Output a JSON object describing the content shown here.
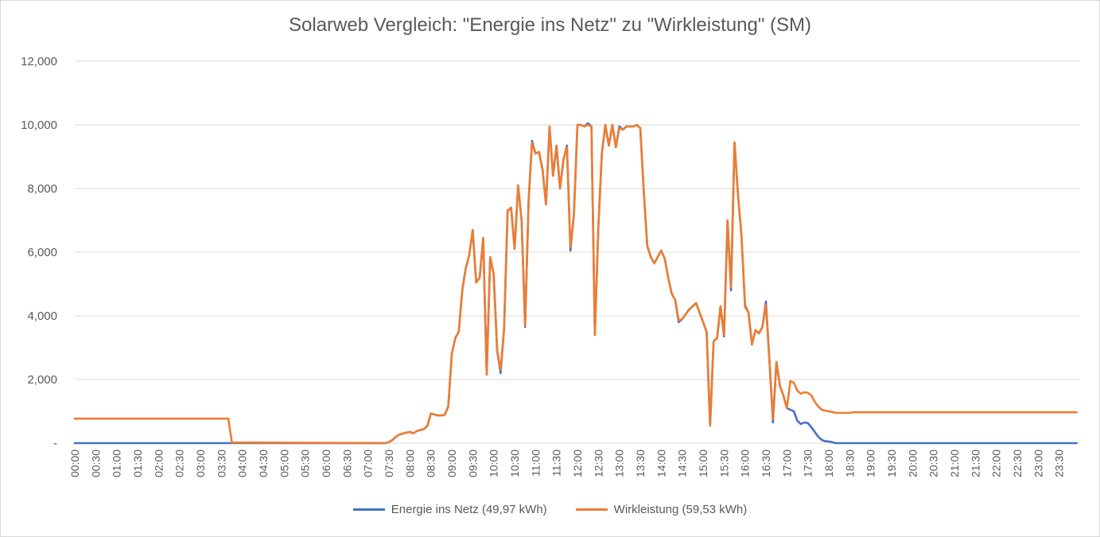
{
  "chart_data": {
    "type": "line",
    "title": "Solarweb Vergleich: \"Energie ins Netz\" zu \"Wirkleistung\" (SM)",
    "xlabel": "",
    "ylabel": "",
    "ylim": [
      0,
      12000
    ],
    "y_ticks": [
      {
        "value": 0,
        "label": "-"
      },
      {
        "value": 2000,
        "label": "2,000"
      },
      {
        "value": 4000,
        "label": "4,000"
      },
      {
        "value": 6000,
        "label": "6,000"
      },
      {
        "value": 8000,
        "label": "8,000"
      },
      {
        "value": 10000,
        "label": "10,000"
      },
      {
        "value": 12000,
        "label": "12,000"
      }
    ],
    "x_tick_labels": [
      "00:00",
      "00:30",
      "01:00",
      "01:30",
      "02:00",
      "02:30",
      "03:00",
      "03:30",
      "04:00",
      "04:30",
      "05:00",
      "05:30",
      "06:00",
      "06:30",
      "07:00",
      "07:30",
      "08:00",
      "08:30",
      "09:00",
      "09:30",
      "10:00",
      "10:30",
      "11:00",
      "11:30",
      "12:00",
      "12:30",
      "13:00",
      "13:30",
      "14:00",
      "14:30",
      "15:00",
      "15:30",
      "16:00",
      "16:30",
      "17:00",
      "17:30",
      "18:00",
      "18:30",
      "19:00",
      "19:30",
      "20:00",
      "20:30",
      "21:00",
      "21:30",
      "22:00",
      "22:30",
      "23:00",
      "23:30"
    ],
    "grid": true,
    "legend_position": "bottom",
    "series": [
      {
        "name": "Energie ins Netz (49,97 kWh)",
        "color": "#4472c4",
        "points": [
          [
            "00:00",
            0
          ],
          [
            "03:40",
            0
          ],
          [
            "07:25",
            0
          ],
          [
            "07:30",
            30
          ],
          [
            "07:35",
            100
          ],
          [
            "07:40",
            200
          ],
          [
            "07:45",
            270
          ],
          [
            "07:50",
            300
          ],
          [
            "07:55",
            330
          ],
          [
            "08:00",
            350
          ],
          [
            "08:05",
            310
          ],
          [
            "08:10",
            380
          ],
          [
            "08:15",
            410
          ],
          [
            "08:20",
            440
          ],
          [
            "08:25",
            540
          ],
          [
            "08:30",
            930
          ],
          [
            "08:35",
            900
          ],
          [
            "08:40",
            870
          ],
          [
            "08:45",
            870
          ],
          [
            "08:50",
            890
          ],
          [
            "08:55",
            1150
          ],
          [
            "09:00",
            2800
          ],
          [
            "09:05",
            3300
          ],
          [
            "09:10",
            3500
          ],
          [
            "09:15",
            4800
          ],
          [
            "09:20",
            5500
          ],
          [
            "09:25",
            5900
          ],
          [
            "09:30",
            6700
          ],
          [
            "09:35",
            5050
          ],
          [
            "09:40",
            5200
          ],
          [
            "09:45",
            6450
          ],
          [
            "09:50",
            2150
          ],
          [
            "09:55",
            5850
          ],
          [
            "10:00",
            5300
          ],
          [
            "10:05",
            2900
          ],
          [
            "10:10",
            2200
          ],
          [
            "10:15",
            3600
          ],
          [
            "10:20",
            7300
          ],
          [
            "10:25",
            7400
          ],
          [
            "10:30",
            6100
          ],
          [
            "10:35",
            8100
          ],
          [
            "10:40",
            7000
          ],
          [
            "10:45",
            3650
          ],
          [
            "10:50",
            7600
          ],
          [
            "10:55",
            9500
          ],
          [
            "11:00",
            9100
          ],
          [
            "11:05",
            9150
          ],
          [
            "11:10",
            8600
          ],
          [
            "11:15",
            7500
          ],
          [
            "11:20",
            9950
          ],
          [
            "11:25",
            8400
          ],
          [
            "11:30",
            9350
          ],
          [
            "11:35",
            8000
          ],
          [
            "11:40",
            8900
          ],
          [
            "11:45",
            9350
          ],
          [
            "11:50",
            6050
          ],
          [
            "11:55",
            7200
          ],
          [
            "12:00",
            10000
          ],
          [
            "12:05",
            10000
          ],
          [
            "12:10",
            9950
          ],
          [
            "12:15",
            10050
          ],
          [
            "12:20",
            9950
          ],
          [
            "12:25",
            3400
          ],
          [
            "12:30",
            6800
          ],
          [
            "12:35",
            9100
          ],
          [
            "12:40",
            10000
          ],
          [
            "12:45",
            9350
          ],
          [
            "12:50",
            10000
          ],
          [
            "12:55",
            9300
          ],
          [
            "13:00",
            9950
          ],
          [
            "13:05",
            9850
          ],
          [
            "13:10",
            9950
          ],
          [
            "13:15",
            9950
          ],
          [
            "13:20",
            9950
          ],
          [
            "13:25",
            10000
          ],
          [
            "13:30",
            9900
          ],
          [
            "13:35",
            7900
          ],
          [
            "13:40",
            6200
          ],
          [
            "13:45",
            5850
          ],
          [
            "13:50",
            5650
          ],
          [
            "13:55",
            5850
          ],
          [
            "14:00",
            6050
          ],
          [
            "14:05",
            5800
          ],
          [
            "14:10",
            5200
          ],
          [
            "14:15",
            4700
          ],
          [
            "14:20",
            4500
          ],
          [
            "14:25",
            3800
          ],
          [
            "14:30",
            3900
          ],
          [
            "14:35",
            4050
          ],
          [
            "14:40",
            4200
          ],
          [
            "14:45",
            4300
          ],
          [
            "14:50",
            4400
          ],
          [
            "14:55",
            4100
          ],
          [
            "15:00",
            3800
          ],
          [
            "15:05",
            3500
          ],
          [
            "15:10",
            550
          ],
          [
            "15:15",
            3200
          ],
          [
            "15:20",
            3300
          ],
          [
            "15:25",
            4300
          ],
          [
            "15:30",
            3350
          ],
          [
            "15:35",
            7000
          ],
          [
            "15:40",
            4800
          ],
          [
            "15:45",
            9450
          ],
          [
            "15:50",
            7800
          ],
          [
            "15:55",
            6500
          ],
          [
            "16:00",
            4300
          ],
          [
            "16:05",
            4100
          ],
          [
            "16:10",
            3100
          ],
          [
            "16:15",
            3550
          ],
          [
            "16:20",
            3450
          ],
          [
            "16:25",
            3650
          ],
          [
            "16:30",
            4450
          ],
          [
            "16:35",
            2600
          ],
          [
            "16:40",
            650
          ],
          [
            "16:45",
            2550
          ],
          [
            "16:50",
            1800
          ],
          [
            "16:55",
            1500
          ],
          [
            "17:00",
            1100
          ],
          [
            "17:05",
            1050
          ],
          [
            "17:10",
            1000
          ],
          [
            "17:15",
            700
          ],
          [
            "17:20",
            600
          ],
          [
            "17:25",
            650
          ],
          [
            "17:30",
            630
          ],
          [
            "17:35",
            500
          ],
          [
            "17:40",
            350
          ],
          [
            "17:45",
            200
          ],
          [
            "17:50",
            100
          ],
          [
            "17:55",
            60
          ],
          [
            "18:00",
            50
          ],
          [
            "18:05",
            30
          ],
          [
            "18:10",
            0
          ],
          [
            "23:55",
            0
          ]
        ]
      },
      {
        "name": "Wirkleistung (59,53 kWh)",
        "color": "#ed7d31",
        "points": [
          [
            "00:00",
            770
          ],
          [
            "03:40",
            770
          ],
          [
            "03:45",
            20
          ],
          [
            "07:25",
            0
          ],
          [
            "07:30",
            30
          ],
          [
            "07:35",
            100
          ],
          [
            "07:40",
            200
          ],
          [
            "07:45",
            270
          ],
          [
            "07:50",
            300
          ],
          [
            "07:55",
            330
          ],
          [
            "08:00",
            350
          ],
          [
            "08:05",
            310
          ],
          [
            "08:10",
            380
          ],
          [
            "08:15",
            410
          ],
          [
            "08:20",
            440
          ],
          [
            "08:25",
            540
          ],
          [
            "08:30",
            930
          ],
          [
            "08:35",
            900
          ],
          [
            "08:40",
            870
          ],
          [
            "08:45",
            870
          ],
          [
            "08:50",
            890
          ],
          [
            "08:55",
            1150
          ],
          [
            "09:00",
            2800
          ],
          [
            "09:05",
            3300
          ],
          [
            "09:10",
            3500
          ],
          [
            "09:15",
            4800
          ],
          [
            "09:20",
            5500
          ],
          [
            "09:25",
            5900
          ],
          [
            "09:30",
            6700
          ],
          [
            "09:35",
            5050
          ],
          [
            "09:40",
            5200
          ],
          [
            "09:45",
            6450
          ],
          [
            "09:50",
            2150
          ],
          [
            "09:55",
            5850
          ],
          [
            "10:00",
            5300
          ],
          [
            "10:05",
            2900
          ],
          [
            "10:10",
            2300
          ],
          [
            "10:15",
            3600
          ],
          [
            "10:20",
            7300
          ],
          [
            "10:25",
            7400
          ],
          [
            "10:30",
            6100
          ],
          [
            "10:35",
            8100
          ],
          [
            "10:40",
            7000
          ],
          [
            "10:45",
            3700
          ],
          [
            "10:50",
            7600
          ],
          [
            "10:55",
            9450
          ],
          [
            "11:00",
            9100
          ],
          [
            "11:05",
            9150
          ],
          [
            "11:10",
            8600
          ],
          [
            "11:15",
            7500
          ],
          [
            "11:20",
            9950
          ],
          [
            "11:25",
            8400
          ],
          [
            "11:30",
            9350
          ],
          [
            "11:35",
            8000
          ],
          [
            "11:40",
            8900
          ],
          [
            "11:45",
            9300
          ],
          [
            "11:50",
            6150
          ],
          [
            "11:55",
            7200
          ],
          [
            "12:00",
            10000
          ],
          [
            "12:05",
            10000
          ],
          [
            "12:10",
            9950
          ],
          [
            "12:15",
            10000
          ],
          [
            "12:20",
            9950
          ],
          [
            "12:25",
            3400
          ],
          [
            "12:30",
            6800
          ],
          [
            "12:35",
            9100
          ],
          [
            "12:40",
            10000
          ],
          [
            "12:45",
            9350
          ],
          [
            "12:50",
            10000
          ],
          [
            "12:55",
            9300
          ],
          [
            "13:00",
            9900
          ],
          [
            "13:05",
            9850
          ],
          [
            "13:10",
            9950
          ],
          [
            "13:15",
            9950
          ],
          [
            "13:20",
            9950
          ],
          [
            "13:25",
            10000
          ],
          [
            "13:30",
            9900
          ],
          [
            "13:35",
            7900
          ],
          [
            "13:40",
            6200
          ],
          [
            "13:45",
            5850
          ],
          [
            "13:50",
            5650
          ],
          [
            "13:55",
            5850
          ],
          [
            "14:00",
            6050
          ],
          [
            "14:05",
            5800
          ],
          [
            "14:10",
            5200
          ],
          [
            "14:15",
            4700
          ],
          [
            "14:20",
            4500
          ],
          [
            "14:25",
            3850
          ],
          [
            "14:30",
            3900
          ],
          [
            "14:35",
            4050
          ],
          [
            "14:40",
            4200
          ],
          [
            "14:45",
            4300
          ],
          [
            "14:50",
            4400
          ],
          [
            "14:55",
            4100
          ],
          [
            "15:00",
            3800
          ],
          [
            "15:05",
            3500
          ],
          [
            "15:10",
            550
          ],
          [
            "15:15",
            3200
          ],
          [
            "15:20",
            3300
          ],
          [
            "15:25",
            4300
          ],
          [
            "15:30",
            3400
          ],
          [
            "15:35",
            7000
          ],
          [
            "15:40",
            4900
          ],
          [
            "15:45",
            9450
          ],
          [
            "15:50",
            7800
          ],
          [
            "15:55",
            6500
          ],
          [
            "16:00",
            4350
          ],
          [
            "16:05",
            4100
          ],
          [
            "16:10",
            3100
          ],
          [
            "16:15",
            3550
          ],
          [
            "16:20",
            3450
          ],
          [
            "16:25",
            3650
          ],
          [
            "16:30",
            4350
          ],
          [
            "16:35",
            2600
          ],
          [
            "16:40",
            750
          ],
          [
            "16:45",
            2550
          ],
          [
            "16:50",
            1800
          ],
          [
            "16:55",
            1500
          ],
          [
            "17:00",
            1100
          ],
          [
            "17:05",
            1950
          ],
          [
            "17:10",
            1900
          ],
          [
            "17:15",
            1650
          ],
          [
            "17:20",
            1550
          ],
          [
            "17:25",
            1600
          ],
          [
            "17:30",
            1580
          ],
          [
            "17:35",
            1500
          ],
          [
            "17:40",
            1300
          ],
          [
            "17:45",
            1150
          ],
          [
            "17:50",
            1050
          ],
          [
            "17:55",
            1020
          ],
          [
            "18:00",
            1000
          ],
          [
            "18:05",
            980
          ],
          [
            "18:10",
            950
          ],
          [
            "18:15",
            950
          ],
          [
            "18:20",
            950
          ],
          [
            "18:25",
            950
          ],
          [
            "18:30",
            950
          ],
          [
            "18:35",
            970
          ],
          [
            "23:55",
            970
          ]
        ]
      }
    ]
  }
}
